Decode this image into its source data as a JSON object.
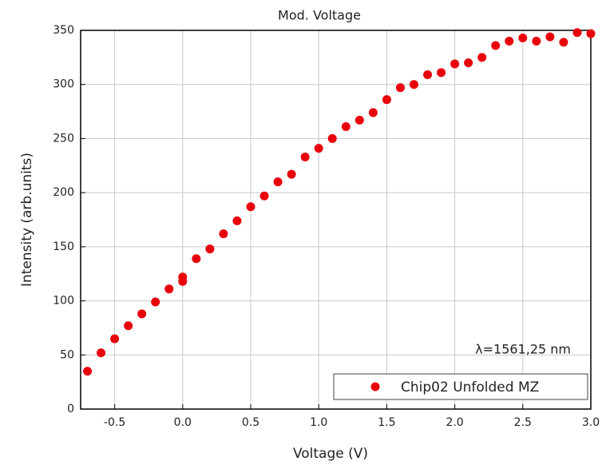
{
  "chart_data": {
    "type": "scatter",
    "title": "Mod. Voltage",
    "x_label": "Voltage (V)",
    "y_label": "Intensity (arb.units)",
    "annotation": "λ=1561,25 nm",
    "legend": "lower right",
    "grid": true,
    "xlim": [
      -0.75,
      3.0
    ],
    "ylim": [
      0,
      350
    ],
    "xticks": [
      -0.5,
      {
        "value": 0,
        "label": "0.0"
      },
      0.5,
      {
        "value": 1,
        "label": "1.0"
      },
      1.5,
      {
        "value": 2,
        "label": "2.0"
      },
      2.5,
      {
        "value": 3,
        "label": "3.0"
      }
    ],
    "yticks": [
      0,
      50,
      100,
      150,
      200,
      250,
      300,
      350
    ],
    "series": [
      {
        "name": "Chip02 Unfolded MZ",
        "color": "#e8000b",
        "x": [
          -0.7,
          -0.6,
          -0.5,
          -0.4,
          -0.3,
          -0.2,
          -0.1,
          0,
          0,
          0.1,
          0.2,
          0.3,
          0.4,
          0.5,
          0.6,
          0.7,
          0.8,
          0.9,
          1.0,
          1.1,
          1.2,
          1.3,
          1.4,
          1.5,
          1.6,
          1.7,
          1.8,
          1.9,
          2.0,
          2.1,
          2.2,
          2.3,
          2.4,
          2.5,
          2.6,
          2.7,
          2.8,
          2.9,
          3.0
        ],
        "values": [
          35,
          52,
          65,
          77,
          88,
          99,
          111,
          118,
          122,
          139,
          148,
          162,
          174,
          187,
          197,
          210,
          217,
          233,
          241,
          250,
          261,
          267,
          274,
          286,
          297,
          300,
          309,
          311,
          319,
          320,
          325,
          336,
          340,
          343,
          340,
          344,
          339,
          348,
          347
        ]
      }
    ]
  }
}
